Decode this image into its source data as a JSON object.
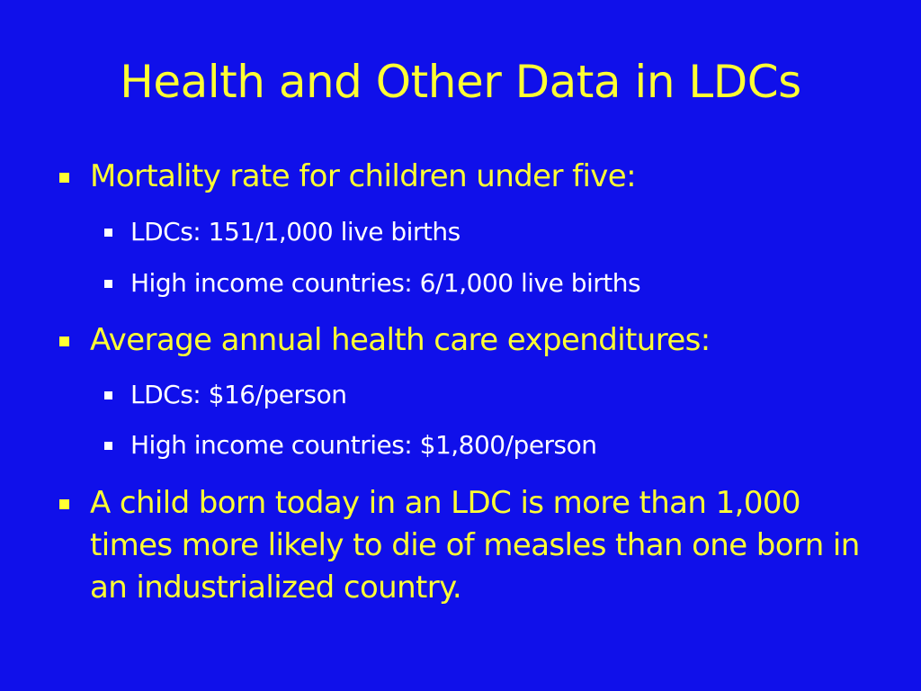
{
  "slide": {
    "title": "Health and Other Data in LDCs",
    "colors": {
      "background": "#1010ea",
      "title": "#ffff33",
      "level1_text": "#ffff33",
      "level2_text": "#ffffff"
    },
    "bullets": [
      {
        "text": "Mortality rate for children under five:",
        "sub": [
          "LDCs: 151/1,000 live births",
          "High income countries: 6/1,000 live births"
        ]
      },
      {
        "text": "Average annual health care expenditures:",
        "sub": [
          "LDCs: $16/person",
          "High income countries: $1,800/person"
        ]
      },
      {
        "text": "A child born today in an LDC is more than 1,000 times more likely to die of measles than one born in an industrialized country.",
        "sub": []
      }
    ]
  }
}
